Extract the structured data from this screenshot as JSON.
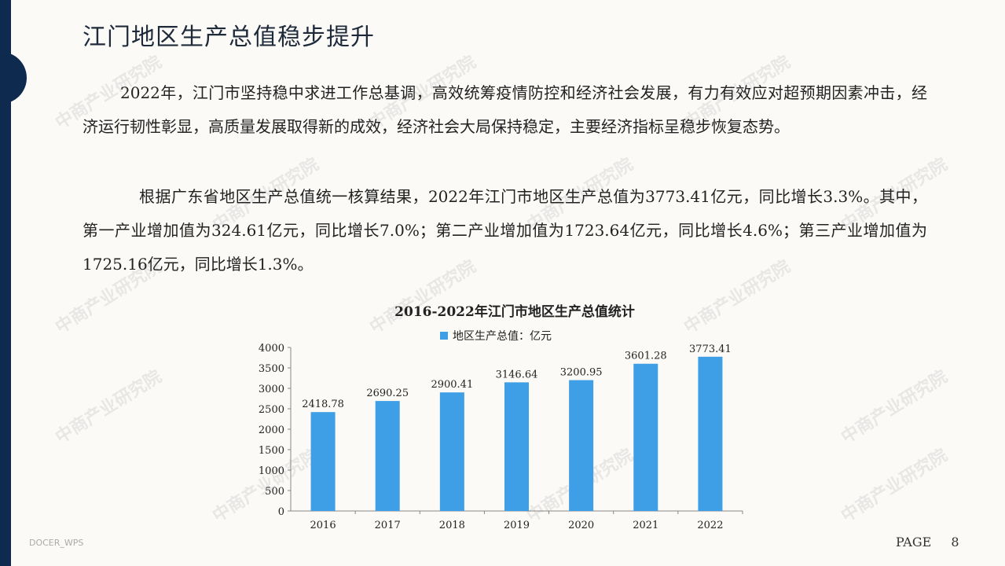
{
  "title": "江门地区生产总值稳步提升",
  "paragraph1": "2022年，江门市坚持稳中求进工作总基调，高效统筹疫情防控和经济社会发展，有力有效应对超预期因素冲击，经济运行韧性彰显，高质量发展取得新的成效，经济社会大局保持稳定，主要经济指标呈稳步恢复态势。",
  "paragraph2": "根据广东省地区生产总值统一核算结果，2022年江门市地区生产总值为3773.41亿元，同比增长3.3%。其中，第一产业增加值为324.61亿元，同比增长7.0%；第二产业增加值为1723.64亿元，同比增长4.6%；第三产业增加值为1725.16亿元，同比增长1.3%。",
  "watermark": "中商产业研究院",
  "footer_left": "DOCER_WPS",
  "footer_page_label": "PAGE",
  "footer_page_number": "8",
  "chart_data": {
    "type": "bar",
    "title": "2016-2022年江门市地区生产总值统计",
    "categories": [
      "2016",
      "2017",
      "2018",
      "2019",
      "2020",
      "2021",
      "2022"
    ],
    "series": [
      {
        "name": "地区生产总值：亿元",
        "values": [
          2418.78,
          2690.25,
          2900.41,
          3146.64,
          3200.95,
          3601.28,
          3773.41
        ],
        "color": "#3e9ee6"
      }
    ],
    "data_labels": [
      "2418.78",
      "2690.25",
      "2900.41",
      "3146.64",
      "3200.95",
      "3601.28",
      "3773.41"
    ],
    "yticks": [
      0,
      500,
      1000,
      1500,
      2000,
      2500,
      3000,
      3500,
      4000
    ],
    "ylim": [
      0,
      4000
    ],
    "legend_position": "top-center",
    "grid": false
  }
}
